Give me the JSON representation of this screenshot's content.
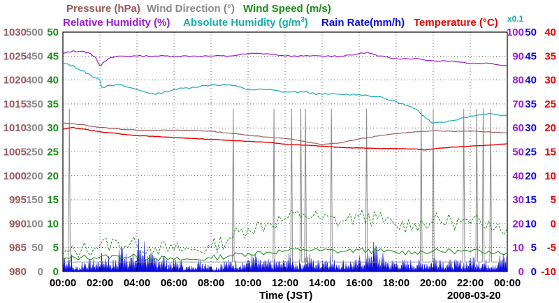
{
  "chart_data": {
    "type": "line",
    "date": "2008-03-20",
    "xlabel": "Time (JST)",
    "x_ticks": [
      "00:00",
      "02:00",
      "04:00",
      "06:00",
      "08:00",
      "10:00",
      "12:00",
      "14:00",
      "16:00",
      "18:00",
      "20:00",
      "22:00",
      "00:00"
    ],
    "x_range_hours": [
      0,
      24
    ],
    "legend": {
      "pressure": "Pressure (hPa)",
      "wind_direction": "Wind Direction (°)",
      "wind_speed": "Wind Speed (m/s)",
      "relative_humidity": "Relative Humidity (%)",
      "absolute_humidity": "Absolute Humidity (g/m",
      "abs_hum_exp": "3",
      "abs_hum_close": ")",
      "rain_rate": "Rain Rate(mm/h)",
      "temperature": "Temperature (°C)",
      "rain_scale_note": "x0.1"
    },
    "axes": {
      "pressure": {
        "range": [
          980,
          1030
        ],
        "ticks": [
          "1030",
          "1025",
          "1020",
          "1015",
          "1010",
          "1005",
          "1000",
          "995",
          "990",
          "985",
          "980"
        ]
      },
      "wind_direction": {
        "range": [
          0,
          500
        ],
        "ticks": [
          "500",
          "450",
          "400",
          "350",
          "300",
          "250",
          "200",
          "150",
          "100",
          "50",
          "0"
        ]
      },
      "wind_speed": {
        "range": [
          0,
          50
        ],
        "ticks": [
          "50",
          "45",
          "40",
          "35",
          "30",
          "25",
          "20",
          "15",
          "10",
          "5",
          "0"
        ]
      },
      "relative_humidity": {
        "range": [
          0,
          100
        ],
        "ticks": [
          "100",
          "90",
          "80",
          "70",
          "60",
          "50",
          "40",
          "30",
          "20",
          "10",
          "0"
        ]
      },
      "rain_rate": {
        "range": [
          0,
          50
        ],
        "ticks": [
          "50",
          "45",
          "40",
          "35",
          "30",
          "25",
          "20",
          "15",
          "10",
          "5",
          "0"
        ]
      },
      "temperature": {
        "range": [
          -10,
          40
        ],
        "ticks": [
          "40",
          "35",
          "30",
          "25",
          "20",
          "15",
          "10",
          "5",
          "0",
          "-5",
          "-10"
        ]
      }
    },
    "colors": {
      "pressure": "#9a5a5a",
      "wind_direction": "#8a8a8a",
      "wind_speed": "#1a8c1a",
      "relative_humidity": "#9a1ad4",
      "absolute_humidity": "#1aacac",
      "rain_rate": "#0a0ad8",
      "temperature": "#e60000",
      "x_axis": "#000000"
    },
    "series": [
      {
        "name": "Relative Humidity",
        "axis": "relative_humidity",
        "x": [
          0,
          0.5,
          1,
          1.5,
          1.8,
          2.0,
          2.5,
          3,
          4,
          5,
          6,
          7,
          8,
          9,
          10,
          11,
          12,
          13,
          14,
          15,
          16,
          16.5,
          17,
          18,
          19,
          20,
          21,
          22,
          23,
          24
        ],
        "values": [
          91,
          92,
          92,
          91,
          89,
          86,
          89,
          90,
          90,
          90,
          90,
          90,
          90,
          90,
          91,
          91,
          90,
          90,
          90,
          90,
          91,
          91.5,
          90,
          89,
          89,
          88,
          88,
          87,
          87,
          86
        ]
      },
      {
        "name": "Absolute Humidity",
        "axis": "relative_humidity",
        "x": [
          0,
          0.5,
          1,
          1.5,
          2,
          2.1,
          3,
          4,
          5,
          6,
          7,
          8,
          9,
          10,
          11,
          12,
          13,
          14,
          15,
          16,
          17,
          18,
          19,
          19.5,
          20,
          21,
          22,
          23,
          24
        ],
        "values": [
          87,
          86,
          84,
          82,
          80,
          77,
          78,
          76,
          74,
          76,
          77,
          78,
          78,
          76,
          76,
          75,
          75,
          74,
          74,
          74,
          73,
          71,
          68,
          65,
          62,
          63,
          65,
          66,
          65
        ]
      },
      {
        "name": "Pressure",
        "axis": "pressure",
        "x": [
          0,
          1,
          2,
          3,
          4,
          5,
          6,
          7,
          8,
          9,
          10,
          11,
          12,
          13,
          14,
          15,
          16,
          17,
          18,
          19,
          20,
          21,
          22,
          23,
          24
        ],
        "values": [
          1011,
          1010.7,
          1010.1,
          1009.8,
          1009.5,
          1009.5,
          1009.5,
          1009.5,
          1009.3,
          1008.9,
          1008.5,
          1008.1,
          1007.8,
          1007.2,
          1006.5,
          1006.9,
          1007.7,
          1008.3,
          1008.8,
          1009.2,
          1009.4,
          1009.3,
          1009.3,
          1009.2,
          1009.0
        ]
      },
      {
        "name": "Temperature",
        "axis": "temperature",
        "x": [
          0,
          0.5,
          1,
          2,
          3,
          4,
          5,
          6,
          7,
          8,
          9,
          10,
          11,
          12,
          13,
          14,
          15,
          16,
          17,
          18,
          19,
          19.5,
          20,
          21,
          22,
          23,
          24
        ],
        "values": [
          19.7,
          20.1,
          19.8,
          19.2,
          18.8,
          18.4,
          18.2,
          18.0,
          17.8,
          17.6,
          17.4,
          17.2,
          17.0,
          16.6,
          16.4,
          16.2,
          15.9,
          15.8,
          15.7,
          15.7,
          15.6,
          15.4,
          15.6,
          16.0,
          16.2,
          16.4,
          16.7
        ]
      },
      {
        "name": "Wind Speed",
        "axis": "wind_speed",
        "x": [
          0,
          1,
          2,
          3,
          4,
          5,
          6,
          7,
          8,
          9,
          10,
          11,
          12,
          13,
          14,
          15,
          16,
          17,
          18,
          19,
          20,
          21,
          22,
          23,
          24
        ],
        "values": [
          2.5,
          3.0,
          3.0,
          3.2,
          3.0,
          2.8,
          2.5,
          2.5,
          2.8,
          3.3,
          3.8,
          4.0,
          4.3,
          4.6,
          4.4,
          4.2,
          4.5,
          4.3,
          4.0,
          4.1,
          4.2,
          4.3,
          4.1,
          4.3,
          4.0
        ]
      },
      {
        "name": "Wind Speed (gust)",
        "axis": "wind_speed",
        "x": [
          0,
          1,
          2,
          3,
          4,
          5,
          6,
          7,
          8,
          9,
          10,
          11,
          12,
          13,
          14,
          15,
          16,
          17,
          18,
          19,
          20,
          21,
          22,
          23,
          24
        ],
        "values": [
          3.5,
          4.5,
          5.5,
          6.0,
          5.5,
          5.0,
          4.5,
          4.5,
          5.0,
          7.0,
          9.0,
          10.0,
          11.0,
          12.0,
          11.0,
          10.5,
          11.5,
          11.0,
          9.5,
          10.0,
          10.5,
          10.5,
          10.0,
          10.5,
          9.0
        ]
      },
      {
        "name": "Wind Direction",
        "axis": "wind_direction",
        "spikes_hours": [
          0.35,
          9.2,
          11.4,
          12.35,
          12.85,
          13.1,
          14.5,
          16.4,
          19.35,
          20.0,
          21.65,
          22.35,
          22.7,
          23.1
        ],
        "spike_peak": 340,
        "baseline": 20
      },
      {
        "name": "Rain Rate",
        "axis": "rain_rate",
        "x": [
          0,
          0.5,
          1,
          1.5,
          2,
          2.5,
          3,
          3.5,
          4,
          4.5,
          5,
          5.5,
          6,
          6.5,
          7,
          7.5,
          8,
          8.5,
          9,
          9.5,
          10,
          10.5,
          11,
          11.5,
          12,
          12.5,
          13,
          13.5,
          14,
          14.5,
          15,
          15.5,
          16,
          16.5,
          17,
          17.5,
          18,
          18.5,
          19,
          19.5,
          20,
          20.5,
          21,
          21.5,
          22,
          22.5,
          23,
          23.5,
          24
        ],
        "values": [
          3,
          1,
          2,
          2,
          3,
          2,
          5,
          3,
          6,
          3,
          3,
          2,
          2,
          1,
          2,
          2,
          1,
          2,
          2,
          2,
          3,
          2,
          2,
          2,
          3,
          2,
          3,
          2,
          3,
          2,
          2,
          2,
          3,
          5,
          3,
          2,
          2,
          2,
          2,
          2,
          3,
          2,
          2,
          2,
          3,
          2,
          2,
          3,
          2
        ]
      }
    ]
  }
}
